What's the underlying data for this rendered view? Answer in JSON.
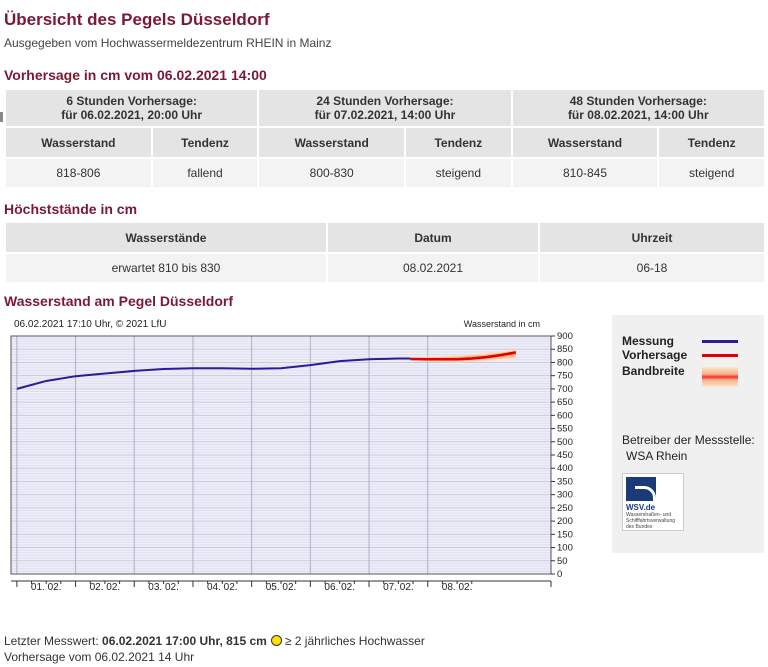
{
  "header": {
    "title": "Übersicht des Pegels Düsseldorf",
    "subtitle": "Ausgegeben vom Hochwassermeldezentrum RHEIN in Mainz"
  },
  "forecast": {
    "heading": "Vorhersage in cm vom 06.02.2021 14:00",
    "blocks": [
      {
        "title_line1": "6 Stunden Vorhersage:",
        "title_line2": "für 06.02.2021, 20:00 Uhr",
        "col_wasserstand": "Wasserstand",
        "col_tendenz": "Tendenz",
        "wasserstand": "818-806",
        "tendenz": "fallend"
      },
      {
        "title_line1": "24 Stunden Vorhersage:",
        "title_line2": "für 07.02.2021, 14:00 Uhr",
        "col_wasserstand": "Wasserstand",
        "col_tendenz": "Tendenz",
        "wasserstand": "800-830",
        "tendenz": "steigend"
      },
      {
        "title_line1": "48 Stunden Vorhersage:",
        "title_line2": "für 08.02.2021, 14:00 Uhr",
        "col_wasserstand": "Wasserstand",
        "col_tendenz": "Tendenz",
        "wasserstand": "810-845",
        "tendenz": "steigend"
      }
    ]
  },
  "peaks": {
    "heading": "Höchststände in cm",
    "headers": [
      "Wasserstände",
      "Datum",
      "Uhrzeit"
    ],
    "row": [
      "erwartet 810 bis 830",
      "08.02.2021",
      "06-18"
    ]
  },
  "chart_section": {
    "heading": "Wasserstand am Pegel Düsseldorf"
  },
  "chart_data": {
    "type": "line",
    "title": "06.02.2021 17:10 Uhr, © 2021 LfU",
    "ylabel": "Wasserstand in cm",
    "ylim": [
      0,
      900
    ],
    "yticks": [
      0,
      50,
      100,
      150,
      200,
      250,
      300,
      350,
      400,
      450,
      500,
      550,
      600,
      650,
      700,
      750,
      800,
      850,
      900
    ],
    "x_day_labels": [
      "01. 02.",
      "02. 02.",
      "03. 02.",
      "04. 02.",
      "05. 02.",
      "06. 02.",
      "07. 02.",
      "08. 02."
    ],
    "grid": true,
    "series": [
      {
        "name": "Messung",
        "color": "#2d1a9a",
        "x": [
          -0.5,
          0.0,
          0.5,
          1.0,
          1.5,
          2.0,
          2.5,
          3.0,
          3.5,
          4.0,
          4.5,
          5.0,
          5.5,
          6.0,
          6.2
        ],
        "y": [
          700,
          730,
          748,
          758,
          768,
          775,
          778,
          778,
          776,
          778,
          790,
          805,
          812,
          815,
          815
        ]
      },
      {
        "name": "Vorhersage",
        "color": "#e00000",
        "x": [
          6.2,
          6.5,
          7.0,
          7.25,
          7.5,
          7.75,
          8.0
        ],
        "y": [
          813,
          812,
          812,
          815,
          820,
          828,
          838
        ]
      },
      {
        "name": "Bandbreite",
        "color": "#f7a070",
        "x": [
          6.2,
          6.5,
          7.0,
          7.25,
          7.5,
          7.75,
          8.0
        ],
        "lower": [
          808,
          802,
          800,
          802,
          805,
          808,
          810
        ],
        "upper": [
          818,
          822,
          828,
          832,
          836,
          842,
          848
        ]
      }
    ]
  },
  "legend": {
    "items": [
      {
        "label": "Messung",
        "color": "#2d1a9a"
      },
      {
        "label": "Vorhersage",
        "color": "#e00000"
      },
      {
        "label": "Bandbreite",
        "color": "#f7a070"
      }
    ],
    "operator_label": "Betreiber der Messstelle:",
    "operator_name": "WSA Rhein",
    "logo_name": "WSV.de",
    "logo_sub": "Wasserstraßen- und Schifffahrtsverwaltung des Bundes"
  },
  "footer": {
    "last_prefix": "Letzter Messwert:",
    "last_value": "06.02.2021 17:00 Uhr, 815 cm",
    "hw_text": "≥ 2 jährliches Hochwasser",
    "forecast_line": "Vorhersage vom 06.02.2021 14 Uhr"
  }
}
